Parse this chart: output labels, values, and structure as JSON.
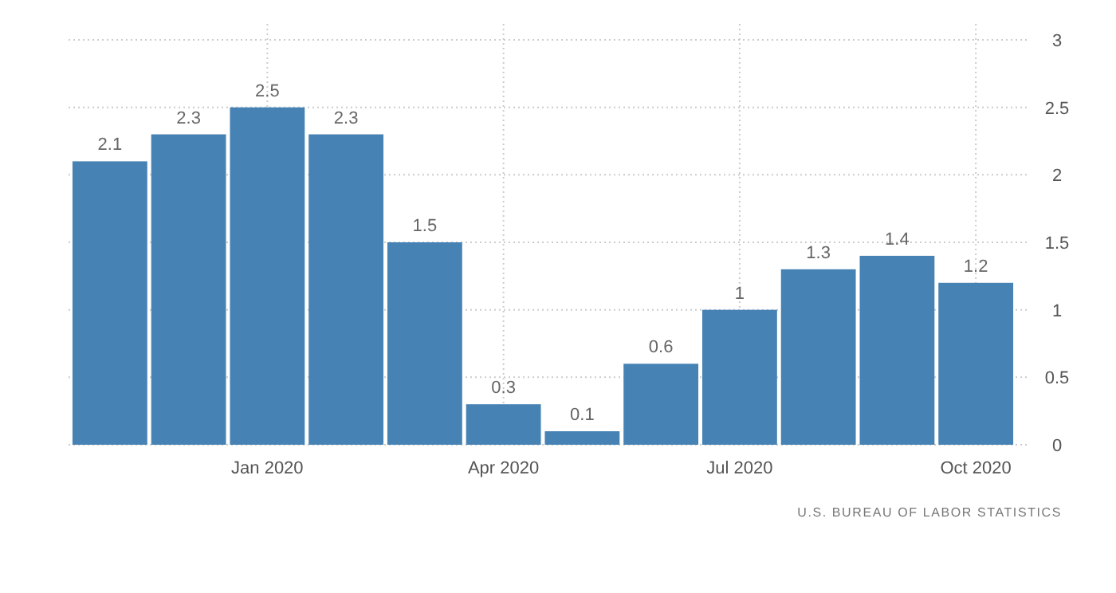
{
  "chart_data": {
    "type": "bar",
    "categories": [
      null,
      null,
      "Jan 2020",
      null,
      null,
      "Apr 2020",
      null,
      null,
      "Jul 2020",
      null,
      null,
      "Oct 2020"
    ],
    "values": [
      2.1,
      2.3,
      2.5,
      2.3,
      1.5,
      0.3,
      0.1,
      0.6,
      1,
      1.3,
      1.4,
      1.2
    ],
    "color": "#4682b4",
    "ylim": [
      0,
      3
    ],
    "yticks": [
      0,
      0.5,
      1,
      1.5,
      2,
      2.5,
      3
    ],
    "grid": true,
    "data_labels": true,
    "annotations": [
      "U.S. BUREAU OF LABOR STATISTICS"
    ]
  }
}
